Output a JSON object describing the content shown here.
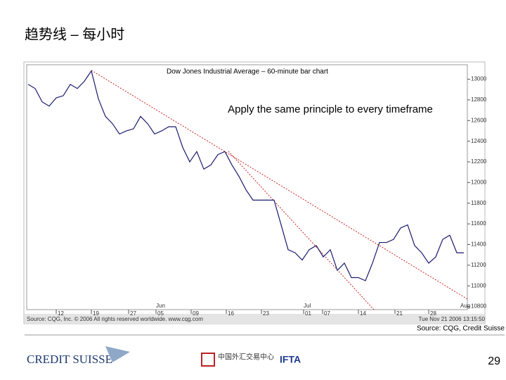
{
  "slide": {
    "title": "趋势线 – 每小时",
    "source": "Source: CQG, Credit Suisse",
    "page": "29",
    "logo_left": "CREDIT SUISSE",
    "logo_mid": "中国外汇交易中心",
    "logo_right": "IFTA"
  },
  "chart_data": {
    "type": "line",
    "title": "Dow Jones Industrial Average – 60-minute bar chart",
    "annotation": "Apply the same principle to every timeframe",
    "footer": "Source: CQG, Inc. © 2006 All rights reserved worldwide. www.cqg.com",
    "timestamp": "Tue Nov 21 2006 13:15:50",
    "color": "#1a1a6e",
    "x": [
      0,
      1,
      2,
      3,
      4,
      5,
      6,
      7,
      8,
      9,
      10,
      11,
      12,
      13,
      14,
      15,
      16,
      17,
      18,
      19,
      20,
      21,
      22,
      23,
      24,
      25,
      26,
      27,
      28,
      29,
      30,
      31,
      32,
      33,
      34,
      35,
      36,
      37,
      38,
      39,
      40,
      41,
      42,
      43,
      44,
      45,
      46,
      47,
      48,
      49,
      50,
      51,
      52,
      53,
      54,
      55,
      56,
      57,
      58,
      59,
      60,
      61,
      62
    ],
    "values": [
      12950,
      12910,
      12780,
      12740,
      12820,
      12840,
      12950,
      12910,
      12980,
      13080,
      12810,
      12640,
      12570,
      12470,
      12500,
      12520,
      12640,
      12570,
      12470,
      12500,
      12540,
      12540,
      12340,
      12200,
      12300,
      12130,
      12170,
      12270,
      12300,
      12170,
      12060,
      11930,
      11830,
      11830,
      11830,
      11830,
      11590,
      11350,
      11320,
      11250,
      11350,
      11390,
      11280,
      11350,
      11150,
      11220,
      11080,
      11080,
      11050,
      11220,
      11420,
      11420,
      11450,
      11560,
      11590,
      11390,
      11320,
      11220,
      11280,
      11450,
      11490,
      11320,
      11320
    ],
    "xlim": [
      -0.2,
      62.5
    ],
    "xticks": [
      {
        "value": 4,
        "label": "12"
      },
      {
        "value": 9,
        "label": "19"
      },
      {
        "value": 14.3,
        "label": "27"
      },
      {
        "value": 18.2,
        "label": "05"
      },
      {
        "value": 23.2,
        "label": "09"
      },
      {
        "value": 28.2,
        "label": "16"
      },
      {
        "value": 33.2,
        "label": "23"
      },
      {
        "value": 39.2,
        "label": "01"
      },
      {
        "value": 41.9,
        "label": "07"
      },
      {
        "value": 47,
        "label": "14"
      },
      {
        "value": 52.2,
        "label": "21"
      },
      {
        "value": 57,
        "label": "28"
      }
    ],
    "month_ticks": [
      {
        "value": 18.2,
        "label": "Jun"
      },
      {
        "value": 39.2,
        "label": "Jul"
      },
      {
        "value": 61.5,
        "label": "Aug"
      }
    ],
    "ylim": [
      10770,
      13140
    ],
    "yticks": [
      10800,
      11000,
      11200,
      11400,
      11600,
      11800,
      12000,
      12200,
      12400,
      12600,
      12800,
      13000
    ]
  }
}
